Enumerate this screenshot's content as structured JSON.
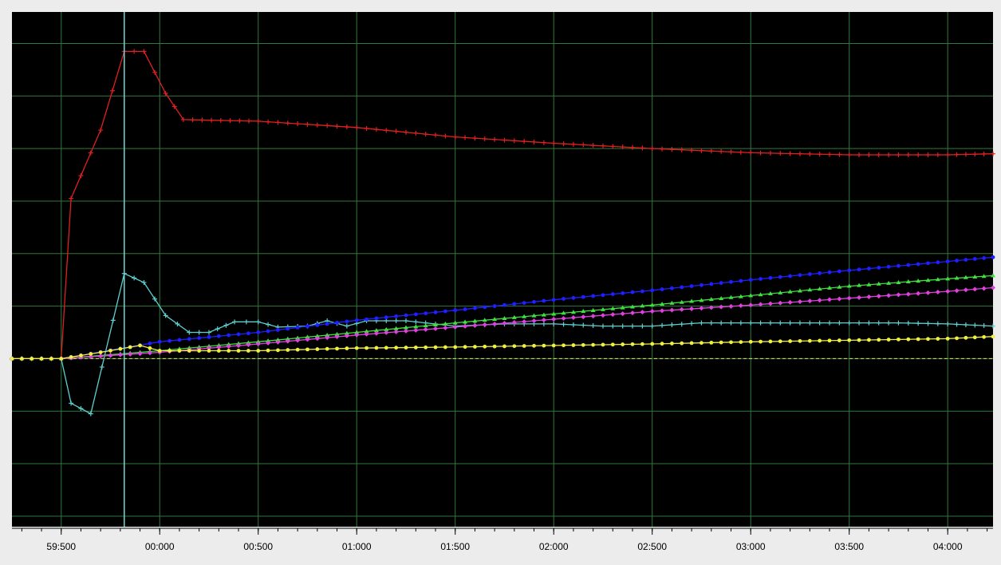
{
  "chart_data": {
    "type": "line",
    "title": "",
    "xlabel": "",
    "ylabel": "",
    "x_unit": "seconds",
    "x_tick_labels": [
      "59:500",
      "00:000",
      "00:500",
      "01:000",
      "01:500",
      "02:000",
      "02:500",
      "03:000",
      "03:500",
      "04:000"
    ],
    "x_ticks": [
      -0.5,
      0,
      0.5,
      1.0,
      1.5,
      2.0,
      2.5,
      3.0,
      3.5,
      4.0
    ],
    "xlim": [
      -0.75,
      4.23
    ],
    "ylim": [
      -3.2,
      6.6
    ],
    "grid": true,
    "baseline": {
      "y": 0,
      "color": "#e8e060",
      "style": "dashed"
    },
    "cursor": {
      "x": -0.18,
      "color": "#6fd8d8"
    },
    "colors": {
      "background": "#000000",
      "grid": "#2f7a3a",
      "frame": "#ececec",
      "tick_text": "#000000"
    },
    "series": [
      {
        "color": "#e02020",
        "marker": "cross",
        "points": [
          [
            -0.75,
            0
          ],
          [
            -0.5,
            0
          ],
          [
            -0.45,
            3.05
          ],
          [
            -0.3,
            4.35
          ],
          [
            -0.18,
            5.85
          ],
          [
            -0.08,
            5.85
          ],
          [
            0.03,
            5.05
          ],
          [
            0.12,
            4.55
          ],
          [
            0.5,
            4.52
          ],
          [
            1.0,
            4.4
          ],
          [
            1.5,
            4.22
          ],
          [
            2.0,
            4.1
          ],
          [
            2.5,
            4.0
          ],
          [
            3.0,
            3.92
          ],
          [
            3.5,
            3.88
          ],
          [
            4.0,
            3.88
          ],
          [
            4.23,
            3.9
          ]
        ]
      },
      {
        "color": "#5fd0d0",
        "marker": "cross",
        "points": [
          [
            -0.75,
            0
          ],
          [
            -0.5,
            0
          ],
          [
            -0.45,
            -0.85
          ],
          [
            -0.35,
            -1.05
          ],
          [
            -0.18,
            1.62
          ],
          [
            -0.08,
            1.45
          ],
          [
            0.03,
            0.82
          ],
          [
            0.15,
            0.5
          ],
          [
            0.25,
            0.5
          ],
          [
            0.38,
            0.7
          ],
          [
            0.5,
            0.7
          ],
          [
            0.6,
            0.6
          ],
          [
            0.75,
            0.62
          ],
          [
            0.85,
            0.72
          ],
          [
            0.95,
            0.62
          ],
          [
            1.05,
            0.72
          ],
          [
            1.25,
            0.72
          ],
          [
            1.5,
            0.62
          ],
          [
            1.75,
            0.66
          ],
          [
            2.0,
            0.66
          ],
          [
            2.25,
            0.62
          ],
          [
            2.5,
            0.62
          ],
          [
            2.75,
            0.68
          ],
          [
            3.0,
            0.68
          ],
          [
            3.25,
            0.68
          ],
          [
            3.5,
            0.68
          ],
          [
            3.75,
            0.68
          ],
          [
            4.0,
            0.66
          ],
          [
            4.23,
            0.62
          ]
        ]
      },
      {
        "color": "#1f1fff",
        "marker": "circle",
        "points": [
          [
            -0.75,
            0
          ],
          [
            -0.5,
            0
          ],
          [
            0.0,
            0.32
          ],
          [
            0.5,
            0.5
          ],
          [
            1.0,
            0.73
          ],
          [
            1.5,
            0.92
          ],
          [
            2.0,
            1.12
          ],
          [
            2.5,
            1.3
          ],
          [
            3.0,
            1.5
          ],
          [
            3.5,
            1.68
          ],
          [
            4.0,
            1.85
          ],
          [
            4.23,
            1.93
          ]
        ]
      },
      {
        "color": "#40e040",
        "marker": "triangle",
        "points": [
          [
            -0.75,
            0
          ],
          [
            -0.5,
            0
          ],
          [
            0.0,
            0.15
          ],
          [
            0.5,
            0.32
          ],
          [
            1.0,
            0.5
          ],
          [
            1.5,
            0.68
          ],
          [
            2.0,
            0.85
          ],
          [
            2.5,
            1.02
          ],
          [
            3.0,
            1.2
          ],
          [
            3.5,
            1.38
          ],
          [
            4.0,
            1.52
          ],
          [
            4.23,
            1.58
          ]
        ]
      },
      {
        "color": "#e040e0",
        "marker": "diamond",
        "points": [
          [
            -0.75,
            0
          ],
          [
            -0.5,
            0
          ],
          [
            0.0,
            0.12
          ],
          [
            0.5,
            0.28
          ],
          [
            1.0,
            0.45
          ],
          [
            1.5,
            0.6
          ],
          [
            2.0,
            0.75
          ],
          [
            2.5,
            0.9
          ],
          [
            3.0,
            1.02
          ],
          [
            3.5,
            1.15
          ],
          [
            4.0,
            1.28
          ],
          [
            4.23,
            1.35
          ]
        ]
      },
      {
        "color": "#f0f040",
        "marker": "circle",
        "points": [
          [
            -0.75,
            0
          ],
          [
            -0.5,
            0
          ],
          [
            -0.3,
            0.12
          ],
          [
            -0.1,
            0.25
          ],
          [
            0.0,
            0.15
          ],
          [
            0.5,
            0.15
          ],
          [
            1.0,
            0.2
          ],
          [
            1.5,
            0.22
          ],
          [
            2.0,
            0.25
          ],
          [
            2.5,
            0.28
          ],
          [
            3.0,
            0.32
          ],
          [
            3.5,
            0.35
          ],
          [
            4.0,
            0.38
          ],
          [
            4.23,
            0.42
          ]
        ]
      }
    ]
  }
}
